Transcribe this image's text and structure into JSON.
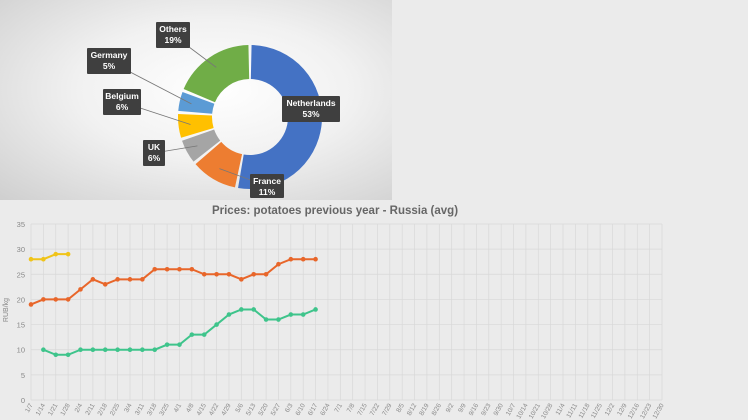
{
  "chart_data": [
    {
      "type": "pie",
      "subtype": "donut",
      "title": "",
      "slices": [
        {
          "label": "Netherlands",
          "value": 53,
          "value_label": "53%",
          "color": "#4472c4"
        },
        {
          "label": "France",
          "value": 11,
          "value_label": "11%",
          "color": "#ed7d31"
        },
        {
          "label": "UK",
          "value": 6,
          "value_label": "6%",
          "color": "#a5a5a5"
        },
        {
          "label": "Belgium",
          "value": 6,
          "value_label": "6%",
          "color": "#ffc000"
        },
        {
          "label": "Germany",
          "value": 5,
          "value_label": "5%",
          "color": "#5b9bd5"
        },
        {
          "label": "Others",
          "value": 19,
          "value_label": "19%",
          "color": "#70ad47"
        }
      ]
    },
    {
      "type": "line",
      "title": "Prices: potatoes previous year - Russia (avg)",
      "xlabel": "",
      "ylabel": "RUB/kg",
      "ylim": [
        0,
        35
      ],
      "yticks": [
        0,
        5,
        10,
        15,
        20,
        25,
        30,
        35
      ],
      "grid": true,
      "legend": "none",
      "categories": [
        "1/7",
        "1/14",
        "1/21",
        "1/28",
        "2/4",
        "2/11",
        "2/18",
        "2/25",
        "3/4",
        "3/11",
        "3/18",
        "3/25",
        "4/1",
        "4/8",
        "4/15",
        "4/22",
        "4/29",
        "5/6",
        "5/13",
        "5/20",
        "5/27",
        "6/3",
        "6/10",
        "6/17",
        "6/24",
        "7/1",
        "7/8",
        "7/15",
        "7/22",
        "7/29",
        "8/5",
        "8/12",
        "8/19",
        "8/26",
        "9/2",
        "9/9",
        "9/16",
        "9/23",
        "9/30",
        "10/7",
        "10/14",
        "10/21",
        "10/28",
        "11/4",
        "11/11",
        "11/18",
        "11/25",
        "12/2",
        "12/9",
        "12/16",
        "12/23",
        "12/30"
      ],
      "series": [
        {
          "color": "#f0c419",
          "values": [
            28,
            28,
            29,
            29,
            null,
            null,
            null,
            null,
            null,
            null,
            null,
            null,
            null,
            null,
            null,
            null,
            null,
            null,
            null,
            null,
            null,
            null,
            null,
            null,
            null,
            null,
            null,
            null,
            null,
            null,
            null,
            null,
            null,
            null,
            null,
            null,
            null,
            null,
            null,
            null,
            null,
            null,
            null,
            null,
            null,
            null,
            null,
            null,
            null,
            null,
            null,
            null
          ]
        },
        {
          "color": "#e8662a",
          "values": [
            19,
            20,
            20,
            20,
            22,
            24,
            23,
            24,
            24,
            24,
            26,
            26,
            26,
            26,
            25,
            25,
            25,
            24,
            25,
            25,
            27,
            28,
            28,
            28,
            null,
            null,
            null,
            null,
            null,
            null,
            null,
            null,
            null,
            null,
            null,
            null,
            null,
            null,
            null,
            null,
            null,
            null,
            null,
            null,
            null,
            null,
            null,
            null,
            null,
            null,
            null,
            null
          ]
        },
        {
          "color": "#3ec48b",
          "values": [
            null,
            10,
            9,
            9,
            10,
            10,
            10,
            10,
            10,
            10,
            10,
            11,
            11,
            13,
            13,
            15,
            17,
            18,
            18,
            16,
            16,
            17,
            17,
            18,
            null,
            null,
            null,
            null,
            null,
            null,
            null,
            null,
            null,
            null,
            null,
            null,
            null,
            null,
            null,
            null,
            null,
            null,
            null,
            null,
            null,
            null,
            null,
            null,
            null,
            null,
            null,
            null
          ]
        }
      ]
    }
  ]
}
